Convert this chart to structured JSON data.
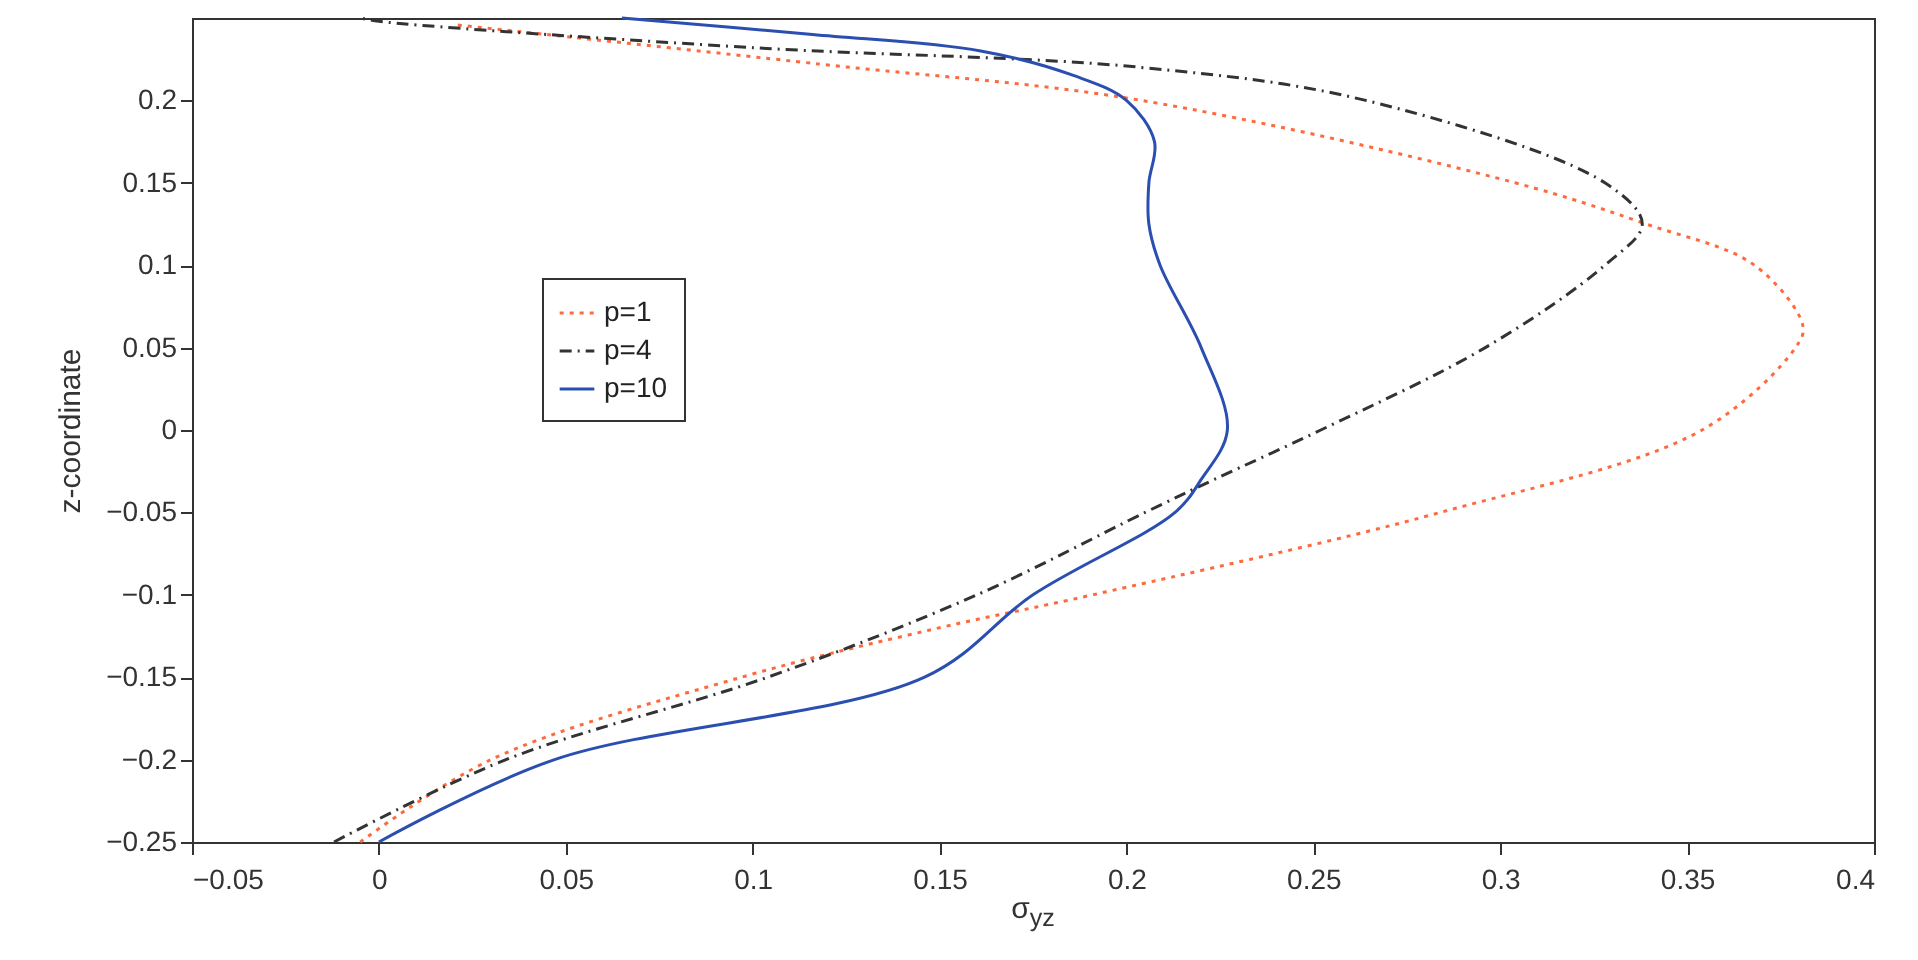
{
  "chart_data": {
    "type": "line",
    "xlabel": "σ$_{yz}$",
    "ylabel": "z-coordinate",
    "xlim": [
      -0.05,
      0.4
    ],
    "ylim": [
      -0.25,
      0.25
    ],
    "xticks": [
      -0.05,
      0,
      0.05,
      0.1,
      0.15,
      0.2,
      0.25,
      0.3,
      0.35,
      0.4
    ],
    "yticks": [
      -0.25,
      -0.2,
      -0.15,
      -0.1,
      -0.05,
      0,
      0.05,
      0.1,
      0.15,
      0.2
    ],
    "grid": false,
    "legend": "left",
    "series": [
      {
        "name": "p=1",
        "color": "#ff6a3d",
        "line_style": "dotted",
        "x": [
          -0.005,
          0.03,
          0.097,
          0.15,
          0.191,
          0.284,
          0.354,
          0.379,
          0.381,
          0.368,
          0.339,
          0.304,
          0.204,
          0.118,
          0.02
        ],
        "values": [
          -0.25,
          -0.2,
          -0.15,
          -0.12,
          -0.1,
          -0.05,
          0,
          0.05,
          0.063,
          0.1,
          0.125,
          0.15,
          0.2,
          0.222,
          0.246
        ]
      },
      {
        "name": "p=4",
        "color": "#333333",
        "line_style": "dashdot",
        "x": [
          -0.012,
          0.034,
          0.104,
          0.16,
          0.205,
          0.2235,
          0.252,
          0.296,
          0.328,
          0.338,
          0.328,
          0.264,
          0.204,
          0.1,
          0.0,
          -0.005
        ],
        "values": [
          -0.25,
          -0.2,
          -0.15,
          -0.1,
          -0.05,
          -0.03,
          0,
          0.05,
          0.1,
          0.125,
          0.15,
          0.2,
          0.22,
          0.232,
          0.248,
          0.25
        ]
      },
      {
        "name": "p=10",
        "color": "#2b4fb0",
        "line_style": "solid",
        "x": [
          0.0,
          0.047,
          0.146,
          0.175,
          0.213,
          0.22,
          0.227,
          0.22,
          0.209,
          0.206,
          0.206,
          0.2075,
          0.2,
          0.186,
          0.161,
          0.116,
          0.065
        ],
        "values": [
          -0.25,
          -0.2,
          -0.15,
          -0.1,
          -0.05,
          -0.03,
          0,
          0.05,
          0.1,
          0.125,
          0.15,
          0.175,
          0.2,
          0.215,
          0.23,
          0.24,
          0.25
        ]
      }
    ]
  }
}
